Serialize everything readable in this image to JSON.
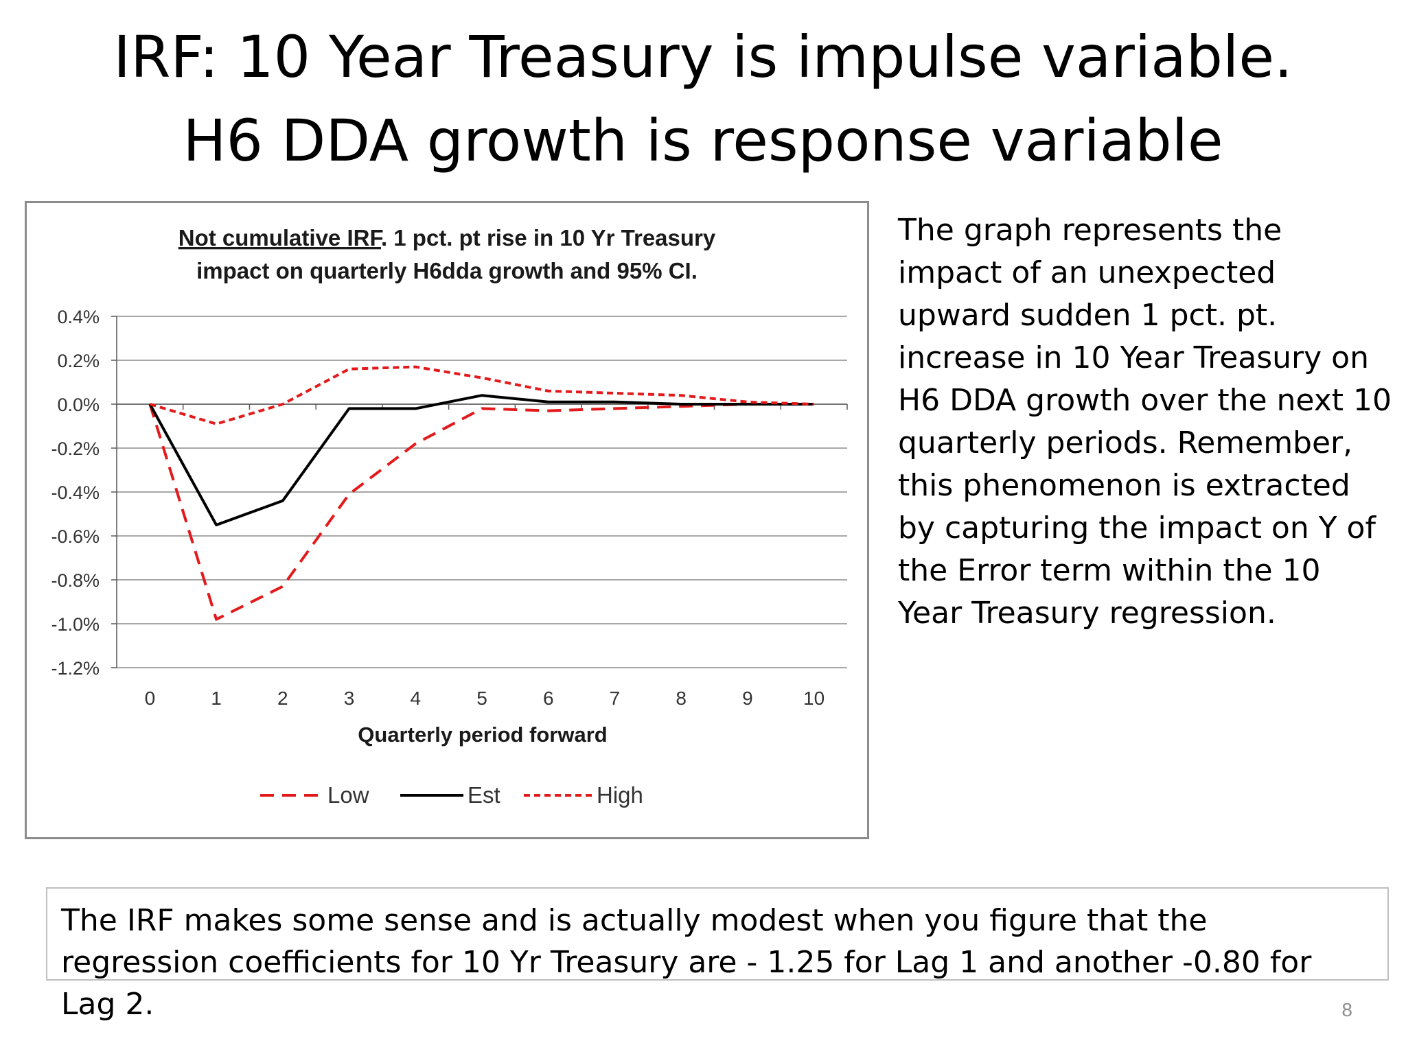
{
  "slide": {
    "title_line1": "IRF: 10 Year Treasury is impulse variable.",
    "title_line2": "H6 DDA growth is response variable",
    "side_text": "The graph represents the impact of an unexpected upward sudden 1 pct. pt. increase in 10 Year Treasury on H6 DDA growth over the next 10 quarterly periods. Remember, this phenomenon is extracted by capturing the impact on Y of the Error term within the 10 Year Treasury regression.",
    "bottom_text": "The IRF makes some sense and is actually modest when you figure that the regression coefficients for 10 Yr Treasury are - 1.25 for Lag 1 and another  -0.80 for Lag 2.",
    "page_number": "8"
  },
  "chart_data": {
    "type": "line",
    "title_underlined": "Not cumulative IRF",
    "title_rest": ". 1 pct. pt rise in 10 Yr Treasury",
    "title_line2": "impact on quarterly H6dda growth and 95% CI.",
    "xlabel": "Quarterly period forward",
    "ylabel": "",
    "x": [
      0,
      1,
      2,
      3,
      4,
      5,
      6,
      7,
      8,
      9,
      10
    ],
    "ylim": [
      -1.2,
      0.4
    ],
    "yticks": [
      0.4,
      0.2,
      0.0,
      -0.2,
      -0.4,
      -0.6,
      -0.8,
      -1.0,
      -1.2
    ],
    "ytick_labels": [
      "0.4%",
      "0.2%",
      "0.0%",
      "-0.2%",
      "-0.4%",
      "-0.6%",
      "-0.8%",
      "-1.0%",
      "-1.2%"
    ],
    "grid": true,
    "legend_position": "bottom",
    "series": [
      {
        "name": "Low",
        "color": "#e31a1c",
        "dash": "long",
        "values": [
          0.0,
          -0.98,
          -0.83,
          -0.41,
          -0.18,
          -0.02,
          -0.03,
          -0.02,
          -0.01,
          0.0,
          0.0
        ]
      },
      {
        "name": "Est",
        "color": "#000000",
        "dash": "solid",
        "values": [
          0.0,
          -0.55,
          -0.44,
          -0.02,
          -0.02,
          0.04,
          0.01,
          0.01,
          0.0,
          0.0,
          0.0
        ]
      },
      {
        "name": "High",
        "color": "#e31a1c",
        "dash": "short",
        "values": [
          0.0,
          -0.09,
          0.0,
          0.16,
          0.17,
          0.12,
          0.06,
          0.05,
          0.04,
          0.01,
          0.0
        ]
      }
    ]
  }
}
